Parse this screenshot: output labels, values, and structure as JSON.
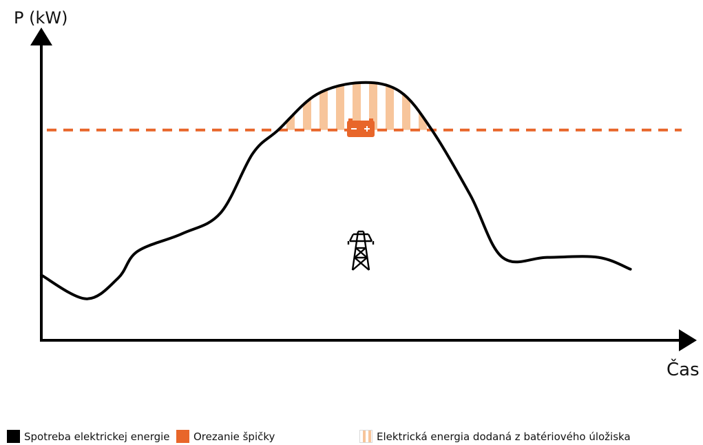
{
  "chart_data": {
    "type": "line",
    "ylabel": "P (kW)",
    "xlabel": "Čas",
    "threshold": 0.71,
    "series": [
      {
        "name": "Spotreba elektrickej energie",
        "color": "#000000",
        "points": [
          [
            0.0,
            0.22
          ],
          [
            0.07,
            0.14
          ],
          [
            0.12,
            0.21
          ],
          [
            0.15,
            0.3
          ],
          [
            0.22,
            0.36
          ],
          [
            0.28,
            0.43
          ],
          [
            0.33,
            0.63
          ],
          [
            0.37,
            0.71
          ],
          [
            0.43,
            0.83
          ],
          [
            0.5,
            0.87
          ],
          [
            0.56,
            0.84
          ],
          [
            0.61,
            0.71
          ],
          [
            0.67,
            0.49
          ],
          [
            0.72,
            0.28
          ],
          [
            0.79,
            0.28
          ],
          [
            0.87,
            0.28
          ],
          [
            0.92,
            0.24
          ]
        ]
      }
    ],
    "colors": {
      "curve": "#000000",
      "peak_shaving": "#e8662a",
      "battery_fill": "#f7c59b"
    },
    "icons": [
      "battery-icon",
      "power-pylon-icon"
    ]
  },
  "legend": [
    {
      "label": "Spotreba elektrickej energie"
    },
    {
      "label": "Orezanie špičky"
    },
    {
      "label": "Elektrická energia dodaná z batériového úložiska"
    }
  ]
}
